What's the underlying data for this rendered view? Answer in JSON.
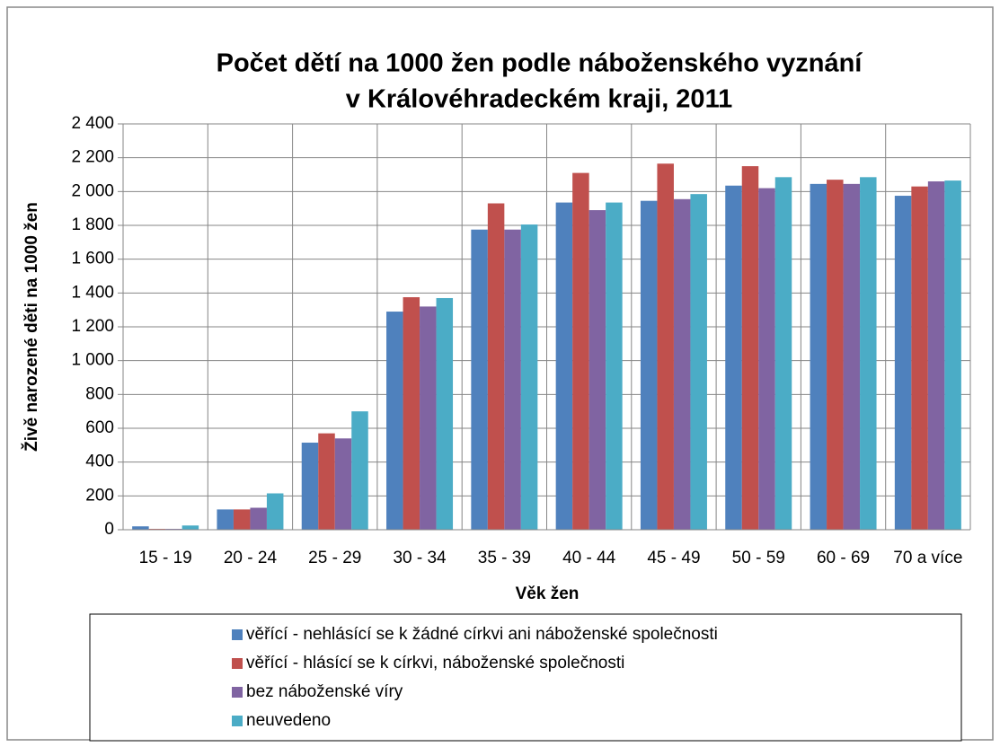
{
  "chart_data": {
    "type": "bar",
    "title": [
      "Počet dětí na 1000 žen podle náboženského vyznání",
      "v Královéhradeckém kraji, 2011"
    ],
    "x_label": "Věk žen",
    "y_label": "Živě narozené děti na 1000 žen",
    "categories": [
      "15 - 19",
      "20 - 24",
      "25 - 29",
      "30 - 34",
      "35 - 39",
      "40 - 44",
      "45 - 49",
      "50 - 59",
      "60 - 69",
      "70 a více"
    ],
    "series": [
      {
        "name": "věřící - nehlásící se k žádné církvi ani náboženské společnosti",
        "color": "#4f81bd",
        "values": [
          20,
          120,
          515,
          1290,
          1775,
          1935,
          1945,
          2035,
          2045,
          1975
        ]
      },
      {
        "name": "věřící - hlásící se k církvi, náboženské společnosti",
        "color": "#c0504d",
        "values": [
          5,
          120,
          570,
          1375,
          1930,
          2110,
          2165,
          2150,
          2070,
          2030
        ]
      },
      {
        "name": "bez náboženské víry",
        "color": "#8064a2",
        "values": [
          5,
          130,
          540,
          1320,
          1775,
          1890,
          1955,
          2020,
          2045,
          2060
        ]
      },
      {
        "name": "neuvedeno",
        "color": "#4bacc6",
        "values": [
          25,
          215,
          700,
          1370,
          1805,
          1935,
          1985,
          2085,
          2085,
          2065
        ]
      }
    ],
    "ylim": [
      0,
      2400
    ],
    "yticks": [
      0,
      200,
      400,
      600,
      800,
      {
        "value": 1000,
        "label": "1 000"
      },
      {
        "value": 1200,
        "label": "1 200"
      },
      {
        "value": 1400,
        "label": "1 400"
      },
      {
        "value": 1600,
        "label": "1 600"
      },
      {
        "value": 1800,
        "label": "1 800"
      },
      {
        "value": 2000,
        "label": "2 000"
      },
      {
        "value": 2200,
        "label": "2 200"
      },
      {
        "value": 2400,
        "label": "2 400"
      }
    ],
    "grid": true
  }
}
